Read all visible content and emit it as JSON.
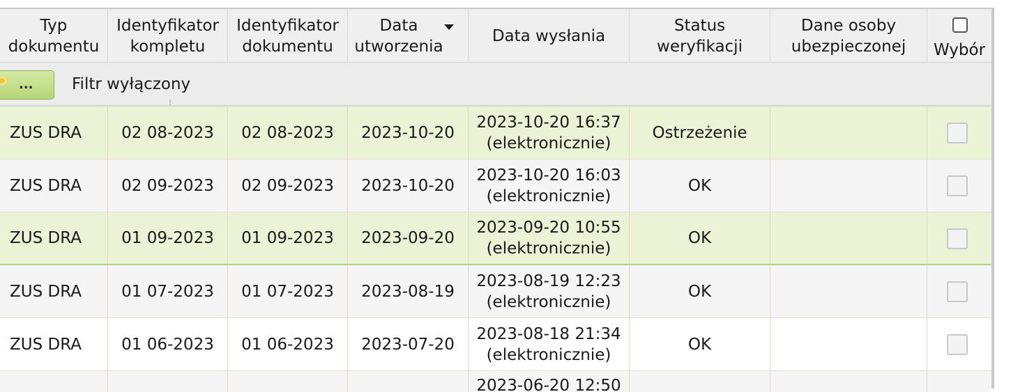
{
  "table": {
    "headers": {
      "typ": "Typ\ndokumentu",
      "komplet": "Identyfikator\nkompletu",
      "dokument": "Identyfikator\ndokumentu",
      "utworzenia": "Data\nutworzenia",
      "wyslania": "Data wysłania",
      "status": "Status\nweryfikacji",
      "osoba": "Dane osoby\nubezpieczonej",
      "wybor": "Wybór"
    },
    "filter": {
      "button_label": "...",
      "status_text": "Filtr wyłączony"
    },
    "rows": [
      {
        "typ": "ZUS DRA",
        "komplet": "02 08-2023",
        "dokument": "02 08-2023",
        "utworzenia": "2023-10-20",
        "wyslania": "2023-10-20 16:37\n(elektronicznie)",
        "status": "Ostrzeżenie",
        "osoba": ""
      },
      {
        "typ": "ZUS DRA",
        "komplet": "02 09-2023",
        "dokument": "02 09-2023",
        "utworzenia": "2023-10-20",
        "wyslania": "2023-10-20 16:03\n(elektronicznie)",
        "status": "OK",
        "osoba": ""
      },
      {
        "typ": "ZUS DRA",
        "komplet": "01 09-2023",
        "dokument": "01 09-2023",
        "utworzenia": "2023-09-20",
        "wyslania": "2023-09-20 10:55\n(elektronicznie)",
        "status": "OK",
        "osoba": ""
      },
      {
        "typ": "ZUS DRA",
        "komplet": "01 07-2023",
        "dokument": "01 07-2023",
        "utworzenia": "2023-08-19",
        "wyslania": "2023-08-19 12:23\n(elektronicznie)",
        "status": "OK",
        "osoba": ""
      },
      {
        "typ": "ZUS DRA",
        "komplet": "01 06-2023",
        "dokument": "01 06-2023",
        "utworzenia": "2023-07-20",
        "wyslania": "2023-08-18 21:34\n(elektronicznie)",
        "status": "OK",
        "osoba": ""
      }
    ],
    "partial_row": {
      "wyslania": "2023-06-20 12:50"
    }
  },
  "colors": {
    "highlight_row": "#eaf3d6",
    "filter_button": "#b5d576"
  }
}
